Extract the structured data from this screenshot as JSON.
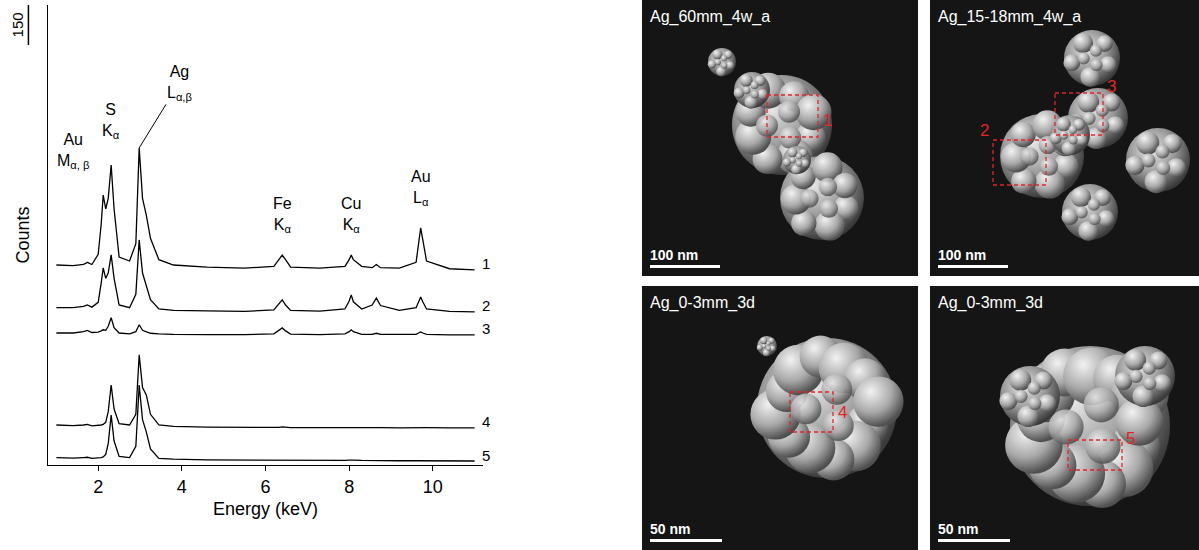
{
  "chart_data": {
    "type": "line",
    "x_label": "Energy (keV)",
    "y_label": "Counts",
    "x": [
      1.0,
      1.4,
      1.65,
      1.74,
      1.85,
      2.0,
      2.07,
      2.12,
      2.18,
      2.24,
      2.31,
      2.38,
      2.5,
      2.75,
      2.9,
      2.98,
      3.06,
      3.15,
      3.25,
      3.45,
      3.8,
      4.6,
      5.5,
      6.2,
      6.32,
      6.4,
      6.48,
      6.6,
      7.3,
      7.9,
      8.0,
      8.05,
      8.1,
      8.3,
      8.55,
      8.65,
      8.75,
      9.2,
      9.6,
      9.66,
      9.71,
      9.76,
      9.85,
      10.4,
      11.0
    ],
    "series": [
      {
        "name": "1",
        "color": "#000000",
        "values": [
          750,
          748,
          752,
          760,
          752,
          790,
          900,
          1012,
          960,
          1000,
          1125,
          960,
          780,
          765,
          830,
          1189,
          1000,
          937,
          850,
          770,
          750,
          742,
          738,
          745,
          770,
          787,
          770,
          742,
          738,
          745,
          770,
          787,
          770,
          745,
          740,
          752,
          740,
          738,
          760,
          840,
          889,
          845,
          765,
          736,
          732
        ]
      },
      {
        "name": "2",
        "color": "#000000",
        "values": [
          590,
          590,
          595,
          600,
          592,
          610,
          680,
          739,
          700,
          720,
          788,
          700,
          600,
          590,
          640,
          844,
          720,
          675,
          620,
          585,
          580,
          578,
          576,
          582,
          602,
          619,
          600,
          580,
          577,
          585,
          615,
          638,
          612,
          585,
          600,
          626,
          598,
          580,
          590,
          615,
          630,
          612,
          585,
          576,
          574
        ]
      },
      {
        "name": "3",
        "color": "#000000",
        "values": [
          495,
          495,
          500,
          505,
          497,
          498,
          503,
          507,
          505,
          520,
          552,
          515,
          495,
          492,
          500,
          526,
          505,
          500,
          494,
          492,
          490,
          489,
          489,
          492,
          505,
          514,
          503,
          491,
          489,
          492,
          500,
          507,
          500,
          490,
          490,
          494,
          490,
          489,
          490,
          495,
          499,
          495,
          490,
          488,
          488
        ]
      },
      {
        "name": "4",
        "color": "#000000",
        "values": [
          150,
          148,
          150,
          152,
          147,
          148,
          150,
          152,
          160,
          200,
          300,
          210,
          155,
          150,
          190,
          413,
          290,
          263,
          190,
          150,
          145,
          142,
          141,
          140,
          141,
          143,
          141,
          140,
          140,
          140,
          141,
          142,
          141,
          140,
          140,
          140,
          140,
          139,
          140,
          140,
          141,
          140,
          140,
          139,
          139
        ]
      },
      {
        "name": "5",
        "color": "#000000",
        "values": [
          28,
          26,
          28,
          29,
          25,
          26,
          28,
          30,
          40,
          80,
          187,
          90,
          32,
          28,
          70,
          300,
          170,
          124,
          60,
          25,
          22,
          19,
          18,
          17,
          18,
          19,
          18,
          17,
          17,
          17,
          18,
          19,
          18,
          17,
          16,
          16,
          16,
          16,
          16,
          16,
          17,
          16,
          16,
          15,
          15
        ]
      }
    ],
    "xlim": [
      0.8,
      11.2
    ],
    "xticks": [
      2,
      4,
      6,
      8,
      10
    ],
    "ylim": [
      0,
      1725
    ],
    "tick_labels": "x",
    "scale_bar": 150,
    "annotations": [
      {
        "element": "Au",
        "line": "M",
        "sub": "α, β",
        "x": 2.12
      },
      {
        "element": "S",
        "line": "K",
        "sub": "α",
        "x": 2.31
      },
      {
        "element": "Ag",
        "line": "L",
        "sub": "α,β",
        "x": 2.98
      },
      {
        "element": "Fe",
        "line": "K",
        "sub": "α",
        "x": 6.4
      },
      {
        "element": "Cu",
        "line": "K",
        "sub": "α",
        "x": 8.05
      },
      {
        "element": "Au",
        "line": "L",
        "sub": "α",
        "x": 9.71
      }
    ]
  },
  "panels": [
    {
      "label": "Ag_60mm_4w_a",
      "scale_bar": "100 nm",
      "regions": [
        "1"
      ]
    },
    {
      "label": "Ag_15-18mm_4w_a",
      "scale_bar": "100 nm",
      "regions": [
        "2",
        "3"
      ]
    },
    {
      "label": "Ag_0-3mm_3d",
      "scale_bar": "50 nm",
      "regions": [
        "4"
      ]
    },
    {
      "label": "Ag_0-3mm_3d",
      "scale_bar": "50 nm",
      "regions": [
        "5"
      ]
    }
  ]
}
